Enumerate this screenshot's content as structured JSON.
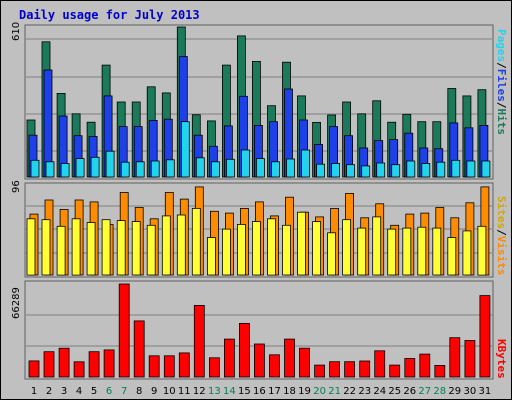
{
  "title": "Daily usage for July 2013",
  "colors": {
    "hits": "#1a7a5a",
    "files": "#1e40e8",
    "pages": "#22d3ee",
    "visits": "#ff8c00",
    "sites": "#ffff33",
    "kbytes": "#ff0000",
    "weekend_label": "#00805a",
    "weekday_label": "#000000",
    "panel_bg": "#c0c0c0"
  },
  "chart_data": [
    {
      "type": "bar",
      "name": "hits-files-pages",
      "ymax_label": "610",
      "ylim": [
        0,
        610
      ],
      "legend": [
        "Pages",
        "Files",
        "Hits"
      ],
      "legend_sep": "/",
      "categories": [
        "1",
        "2",
        "3",
        "4",
        "5",
        "6",
        "7",
        "8",
        "9",
        "10",
        "11",
        "12",
        "13",
        "14",
        "15",
        "16",
        "17",
        "18",
        "19",
        "20",
        "21",
        "22",
        "23",
        "24",
        "25",
        "26",
        "27",
        "28",
        "29",
        "30",
        "31"
      ],
      "series": [
        {
          "name": "Hits",
          "values": [
            232,
            550,
            340,
            257,
            223,
            455,
            305,
            305,
            367,
            342,
            610,
            253,
            228,
            455,
            574,
            470,
            290,
            467,
            330,
            222,
            252,
            305,
            257,
            310,
            223,
            255,
            225,
            225,
            360,
            330,
            355
          ]
        },
        {
          "name": "Files",
          "values": [
            170,
            435,
            248,
            168,
            165,
            330,
            205,
            205,
            230,
            235,
            490,
            170,
            125,
            208,
            328,
            210,
            225,
            358,
            232,
            132,
            205,
            168,
            118,
            148,
            152,
            178,
            118,
            115,
            220,
            200,
            210
          ]
        },
        {
          "name": "Pages",
          "values": [
            68,
            62,
            55,
            75,
            80,
            105,
            60,
            62,
            65,
            70,
            225,
            78,
            62,
            72,
            110,
            75,
            62,
            73,
            110,
            52,
            55,
            50,
            45,
            57,
            50,
            65,
            55,
            60,
            68,
            65,
            65
          ]
        }
      ]
    },
    {
      "type": "bar",
      "name": "visits-sites",
      "ymax_label": "96",
      "ylim": [
        0,
        96
      ],
      "legend": [
        "Sites",
        "Visits"
      ],
      "legend_sep": "/",
      "categories": [
        "1",
        "2",
        "3",
        "4",
        "5",
        "6",
        "7",
        "8",
        "9",
        "10",
        "11",
        "12",
        "13",
        "14",
        "15",
        "16",
        "17",
        "18",
        "19",
        "20",
        "21",
        "22",
        "23",
        "24",
        "25",
        "26",
        "27",
        "28",
        "29",
        "30",
        "31"
      ],
      "series": [
        {
          "name": "Visits",
          "values": [
            65,
            80,
            70,
            80,
            78,
            54,
            88,
            72,
            60,
            88,
            81,
            94,
            68,
            66,
            71,
            78,
            63,
            83,
            67,
            62,
            71,
            87,
            61,
            76,
            53,
            65,
            66,
            72,
            61,
            77,
            94
          ]
        },
        {
          "name": "Sites",
          "values": [
            60,
            59,
            52,
            60,
            56,
            59,
            58,
            57,
            53,
            63,
            64,
            71,
            40,
            49,
            54,
            57,
            60,
            53,
            67,
            57,
            45,
            59,
            50,
            62,
            49,
            50,
            51,
            50,
            40,
            47,
            52
          ]
        }
      ]
    },
    {
      "type": "bar",
      "name": "kbytes",
      "ymax_label": "66289",
      "ylim": [
        0,
        66289
      ],
      "legend": [
        "KBytes"
      ],
      "legend_sep": "",
      "categories": [
        "1",
        "2",
        "3",
        "4",
        "5",
        "6",
        "7",
        "8",
        "9",
        "10",
        "11",
        "12",
        "13",
        "14",
        "15",
        "16",
        "17",
        "18",
        "19",
        "20",
        "21",
        "22",
        "23",
        "24",
        "25",
        "26",
        "27",
        "28",
        "29",
        "30",
        "31"
      ],
      "series": [
        {
          "name": "KBytes",
          "values": [
            11500,
            18000,
            20500,
            10800,
            18000,
            19300,
            66289,
            40000,
            15100,
            15100,
            17200,
            51000,
            13700,
            27000,
            38200,
            23500,
            15800,
            27000,
            20500,
            8500,
            10900,
            10900,
            11400,
            18700,
            8500,
            13200,
            16300,
            8300,
            28000,
            26000,
            58000
          ]
        }
      ]
    }
  ],
  "day_labels": [
    {
      "text": "1",
      "weekend": false
    },
    {
      "text": "2",
      "weekend": false
    },
    {
      "text": "3",
      "weekend": false
    },
    {
      "text": "4",
      "weekend": false
    },
    {
      "text": "5",
      "weekend": false
    },
    {
      "text": "6",
      "weekend": true
    },
    {
      "text": "7",
      "weekend": true
    },
    {
      "text": "8",
      "weekend": false
    },
    {
      "text": "9",
      "weekend": false
    },
    {
      "text": "10",
      "weekend": false
    },
    {
      "text": "11",
      "weekend": false
    },
    {
      "text": "12",
      "weekend": false
    },
    {
      "text": "13",
      "weekend": true
    },
    {
      "text": "14",
      "weekend": true
    },
    {
      "text": "15",
      "weekend": false
    },
    {
      "text": "16",
      "weekend": false
    },
    {
      "text": "17",
      "weekend": false
    },
    {
      "text": "18",
      "weekend": false
    },
    {
      "text": "19",
      "weekend": false
    },
    {
      "text": "20",
      "weekend": true
    },
    {
      "text": "21",
      "weekend": true
    },
    {
      "text": "22",
      "weekend": false
    },
    {
      "text": "23",
      "weekend": false
    },
    {
      "text": "24",
      "weekend": false
    },
    {
      "text": "25",
      "weekend": false
    },
    {
      "text": "26",
      "weekend": false
    },
    {
      "text": "27",
      "weekend": true
    },
    {
      "text": "28",
      "weekend": true
    },
    {
      "text": "29",
      "weekend": false
    },
    {
      "text": "30",
      "weekend": false
    },
    {
      "text": "31",
      "weekend": false
    }
  ]
}
